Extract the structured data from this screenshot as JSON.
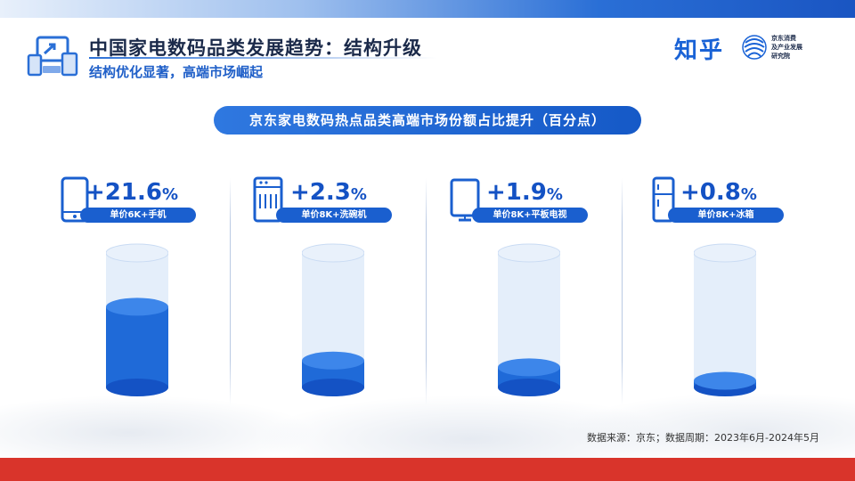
{
  "header": {
    "title": "中国家电数码品类发展趋势：结构升级",
    "subtitle": "结构优化显著，高端市场崛起"
  },
  "logo": {
    "name": "知乎",
    "org_lines": [
      "京东消费",
      "及产业发展",
      "研究院"
    ]
  },
  "chart_data": {
    "type": "bar",
    "title": "京东家电数码热点品类高端市场份额占比提升（百分点）",
    "unit": "%",
    "categories": [
      "单价6K+手机",
      "单价8K+洗碗机",
      "单价8K+平板电视",
      "单价8K+冰箱"
    ],
    "values": [
      21.6,
      2.3,
      1.9,
      0.8
    ],
    "value_labels": [
      "+21.6",
      "+2.3",
      "+1.9",
      "+0.8"
    ],
    "icons": [
      "phone-icon",
      "dishwasher-icon",
      "tv-icon",
      "fridge-icon"
    ],
    "fill_fractions": [
      0.6,
      0.2,
      0.15,
      0.05
    ],
    "colors": {
      "fill": "#1f6ad8",
      "fill_dark": "#1452c4",
      "glass": "#dbe8f8"
    }
  },
  "footer": {
    "source": "数据来源：京东；数据周期：2023年6月-2024年5月"
  }
}
